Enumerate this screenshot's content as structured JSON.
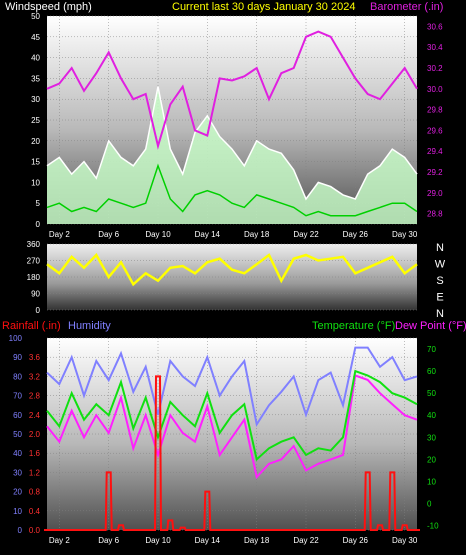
{
  "header": {
    "windspeed_label": "Windspeed (mph)",
    "title": "Current last 30 days January 30 2024",
    "barometer_label": "Barometer (.in)"
  },
  "lower_header": {
    "rainfall_label": "Rainfall (.in)",
    "humidity_label": "Humidity",
    "temperature_label": "Temperature (°F)",
    "dewpoint_label": "Dew Point (°F)"
  },
  "colors": {
    "wind_gust": "#ffffff",
    "wind_avg": "#00d000",
    "wind_fill": "#c8ffc8",
    "barometer": "#e020e0",
    "direction": "#ffff00",
    "rain": "#ff1010",
    "humidity": "#8080ff",
    "temperature": "#10e010",
    "dewpoint": "#ff20ff",
    "title": "#ffff00"
  },
  "chart_data": [
    {
      "type": "line",
      "name": "wind-barometer",
      "x_ticks": [
        "Day 2",
        "Day 6",
        "Day 10",
        "Day 14",
        "Day 18",
        "Day 22",
        "Day 26",
        "Day 30"
      ],
      "xlim": [
        1,
        31
      ],
      "left_axis": {
        "label": "Windspeed (mph)",
        "ticks": [
          0,
          5,
          10,
          15,
          20,
          25,
          30,
          35,
          40,
          45,
          50
        ],
        "ylim": [
          0,
          50
        ]
      },
      "right_axis": {
        "label": "Barometer (.in)",
        "ticks": [
          28.8,
          29.0,
          29.2,
          29.4,
          29.6,
          29.8,
          30.0,
          30.2,
          30.4,
          30.6
        ],
        "ylim": [
          28.7,
          30.7
        ]
      },
      "series": [
        {
          "name": "Barometer",
          "x": [
            1,
            2,
            3,
            4,
            5,
            6,
            7,
            8,
            9,
            10,
            11,
            12,
            13,
            14,
            15,
            16,
            17,
            18,
            19,
            20,
            21,
            22,
            23,
            24,
            25,
            26,
            27,
            28,
            29,
            30,
            31
          ],
          "values": [
            30.0,
            30.05,
            30.2,
            29.98,
            30.15,
            30.35,
            30.1,
            29.9,
            29.95,
            29.45,
            29.85,
            30.02,
            29.6,
            29.55,
            30.1,
            30.08,
            30.12,
            30.2,
            29.9,
            30.15,
            30.2,
            30.5,
            30.55,
            30.5,
            30.3,
            30.1,
            29.95,
            29.9,
            30.05,
            30.2,
            30.0
          ]
        },
        {
          "name": "Wind gust",
          "x": [
            1,
            2,
            3,
            4,
            5,
            6,
            7,
            8,
            9,
            10,
            11,
            12,
            13,
            14,
            15,
            16,
            17,
            18,
            19,
            20,
            21,
            22,
            23,
            24,
            25,
            26,
            27,
            28,
            29,
            30,
            31
          ],
          "values": [
            14,
            16,
            12,
            15,
            11,
            20,
            16,
            14,
            18,
            33,
            18,
            12,
            22,
            26,
            21,
            18,
            14,
            20,
            18,
            17,
            13,
            6,
            10,
            9,
            7,
            6,
            12,
            14,
            18,
            16,
            12
          ]
        },
        {
          "name": "Wind average",
          "x": [
            1,
            2,
            3,
            4,
            5,
            6,
            7,
            8,
            9,
            10,
            11,
            12,
            13,
            14,
            15,
            16,
            17,
            18,
            19,
            20,
            21,
            22,
            23,
            24,
            25,
            26,
            27,
            28,
            29,
            30,
            31
          ],
          "values": [
            4,
            5,
            3,
            4,
            3,
            6,
            5,
            4,
            5,
            14,
            6,
            3,
            7,
            8,
            7,
            5,
            4,
            7,
            6,
            5,
            4,
            2,
            3,
            2,
            2,
            2,
            3,
            4,
            5,
            5,
            3
          ]
        }
      ]
    },
    {
      "type": "line",
      "name": "wind-direction",
      "x_ticks": [],
      "xlim": [
        1,
        31
      ],
      "left_axis": {
        "ticks": [
          0,
          90,
          180,
          270,
          360
        ],
        "ylim": [
          0,
          360
        ]
      },
      "compass_labels": [
        "N",
        "W",
        "S",
        "E",
        "N"
      ],
      "series": [
        {
          "name": "Wind direction",
          "x": [
            1,
            2,
            3,
            4,
            5,
            6,
            7,
            8,
            9,
            10,
            11,
            12,
            13,
            14,
            15,
            16,
            17,
            18,
            19,
            20,
            21,
            22,
            23,
            24,
            25,
            26,
            27,
            28,
            29,
            30,
            31
          ],
          "values": [
            250,
            200,
            290,
            230,
            300,
            180,
            260,
            140,
            200,
            160,
            230,
            240,
            200,
            260,
            280,
            220,
            200,
            250,
            300,
            160,
            280,
            300,
            270,
            280,
            290,
            200,
            230,
            260,
            290,
            200,
            250
          ]
        }
      ]
    },
    {
      "type": "line",
      "name": "rain-humidity-temperature",
      "x_ticks": [
        "Day 2",
        "Day 6",
        "Day 10",
        "Day 14",
        "Day 18",
        "Day 22",
        "Day 26",
        "Day 30"
      ],
      "xlim": [
        1,
        31
      ],
      "rain_axis": {
        "label": "Rainfall (.in)",
        "ticks": [
          0,
          0.4,
          0.8,
          1.2,
          1.6,
          2.0,
          2.4,
          2.8,
          3.2,
          3.6
        ],
        "ylim": [
          0,
          4.0
        ]
      },
      "humidity_axis": {
        "label": "Humidity",
        "ticks": [
          0,
          10,
          20,
          30,
          40,
          50,
          60,
          70,
          80,
          90,
          100
        ],
        "ylim": [
          0,
          100
        ]
      },
      "temp_axis": {
        "label": "Temperature (°F)",
        "ticks": [
          -10,
          0,
          10,
          20,
          30,
          40,
          50,
          60,
          70
        ],
        "ylim": [
          -12,
          75
        ]
      },
      "series": [
        {
          "name": "Rainfall",
          "x": [
            1,
            2,
            3,
            4,
            5,
            6,
            7,
            8,
            9,
            10,
            11,
            12,
            13,
            14,
            15,
            16,
            17,
            18,
            19,
            20,
            21,
            22,
            23,
            24,
            25,
            26,
            27,
            28,
            29,
            30,
            31
          ],
          "values": [
            0,
            0,
            0,
            0,
            0,
            1.2,
            0.1,
            0,
            0,
            3.2,
            0.2,
            0.05,
            0,
            0.8,
            0,
            0,
            0,
            0,
            0,
            0,
            0,
            0,
            0,
            0,
            0,
            0,
            1.2,
            0.1,
            1.2,
            0.1,
            0
          ]
        },
        {
          "name": "Humidity",
          "x": [
            1,
            2,
            3,
            4,
            5,
            6,
            7,
            8,
            9,
            10,
            11,
            12,
            13,
            14,
            15,
            16,
            17,
            18,
            19,
            20,
            21,
            22,
            23,
            24,
            25,
            26,
            27,
            28,
            29,
            30,
            31
          ],
          "values": [
            82,
            76,
            90,
            70,
            88,
            78,
            92,
            72,
            85,
            60,
            88,
            80,
            75,
            90,
            70,
            80,
            88,
            55,
            65,
            72,
            80,
            60,
            78,
            82,
            65,
            95,
            95,
            85,
            90,
            78,
            80
          ]
        },
        {
          "name": "Temperature",
          "x": [
            1,
            2,
            3,
            4,
            5,
            6,
            7,
            8,
            9,
            10,
            11,
            12,
            13,
            14,
            15,
            16,
            17,
            18,
            19,
            20,
            21,
            22,
            23,
            24,
            25,
            26,
            27,
            28,
            29,
            30,
            31
          ],
          "values": [
            42,
            35,
            50,
            38,
            45,
            40,
            55,
            34,
            48,
            30,
            46,
            40,
            35,
            50,
            32,
            40,
            45,
            20,
            25,
            28,
            30,
            22,
            25,
            24,
            30,
            60,
            58,
            55,
            50,
            48,
            45
          ]
        },
        {
          "name": "Dew Point",
          "x": [
            1,
            2,
            3,
            4,
            5,
            6,
            7,
            8,
            9,
            10,
            11,
            12,
            13,
            14,
            15,
            16,
            17,
            18,
            19,
            20,
            21,
            22,
            23,
            24,
            25,
            26,
            27,
            28,
            29,
            30,
            31
          ],
          "values": [
            35,
            28,
            42,
            30,
            40,
            32,
            48,
            25,
            40,
            22,
            40,
            32,
            28,
            44,
            22,
            30,
            38,
            12,
            18,
            20,
            26,
            15,
            18,
            20,
            22,
            58,
            56,
            50,
            45,
            40,
            38
          ]
        }
      ]
    }
  ]
}
